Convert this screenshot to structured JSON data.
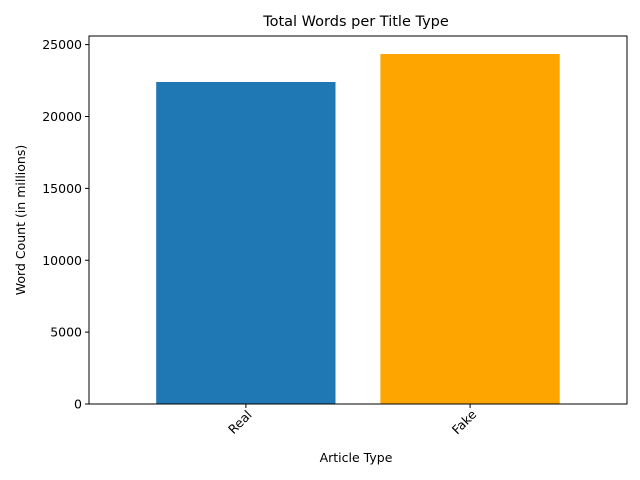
{
  "chart_data": {
    "type": "bar",
    "title": "Total Words per Title Type",
    "xlabel": "Article Type",
    "ylabel": "Word Count (in millions)",
    "categories": [
      "Real",
      "Fake"
    ],
    "values": [
      22400,
      24350
    ],
    "colors": [
      "#1f77b4",
      "#ffa500"
    ],
    "ylim": [
      0,
      25600
    ],
    "yticks": [
      0,
      5000,
      10000,
      15000,
      20000,
      25000
    ],
    "xtick_rotation_deg": 45,
    "grid": false,
    "legend": "none"
  }
}
